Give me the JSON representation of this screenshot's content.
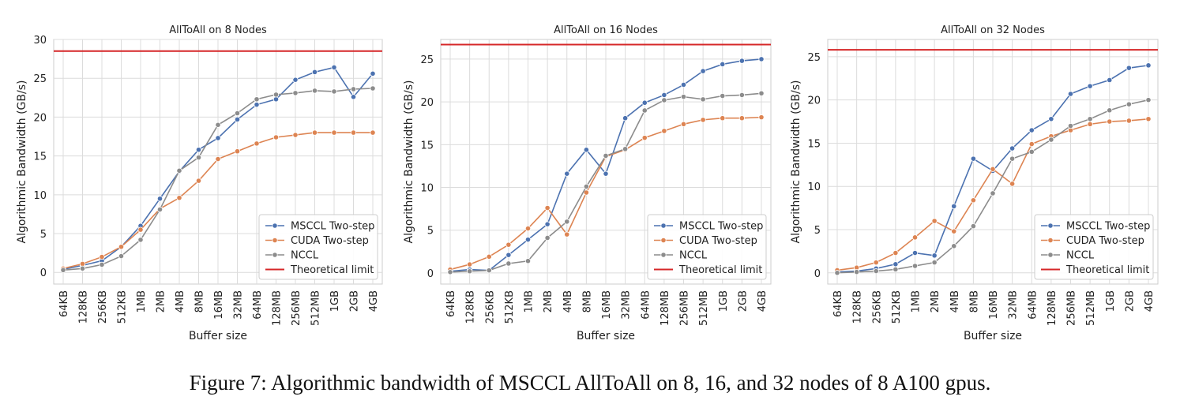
{
  "caption": "Figure 7: Algorithmic bandwidth of MSCCL AllToAll on 8, 16, and 32 nodes of 8 A100 gpus.",
  "colors": {
    "msccl": "#4c72b0",
    "cuda": "#dd8452",
    "nccl": "#8c8c8c",
    "limit": "#d62728",
    "grid": "#dcdcdc",
    "panel": "#eaeaf2"
  },
  "chart_data": [
    {
      "type": "line",
      "title": "AllToAll on 8 Nodes",
      "xlabel": "Buffer size",
      "ylabel": "Algorithmic Bandwidth (GB/s)",
      "categories": [
        "64KB",
        "128KB",
        "256KB",
        "512KB",
        "1MB",
        "2MB",
        "4MB",
        "8MB",
        "16MB",
        "32MB",
        "64MB",
        "128MB",
        "256MB",
        "512MB",
        "1GB",
        "2GB",
        "4GB"
      ],
      "ylim": [
        -1.5,
        30
      ],
      "yticks": [
        0,
        5,
        10,
        15,
        20,
        25,
        30
      ],
      "series": [
        {
          "name": "MSCCL Two-step",
          "values": [
            0.4,
            0.9,
            1.5,
            3.3,
            6.0,
            9.5,
            13.0,
            15.8,
            17.3,
            19.7,
            21.6,
            22.3,
            24.8,
            25.8,
            26.4,
            22.6,
            25.6
          ]
        },
        {
          "name": "CUDA Two-step",
          "values": [
            0.5,
            1.1,
            2.0,
            3.3,
            5.5,
            8.2,
            9.6,
            11.8,
            14.6,
            15.6,
            16.6,
            17.4,
            17.7,
            18.0,
            18.0,
            18.0,
            18.0
          ]
        },
        {
          "name": "NCCL",
          "values": [
            0.3,
            0.5,
            1.0,
            2.1,
            4.2,
            8.1,
            13.1,
            14.8,
            19.0,
            20.5,
            22.3,
            22.9,
            23.1,
            23.4,
            23.3,
            23.6,
            23.7
          ]
        }
      ],
      "limit": {
        "name": "Theoretical limit",
        "value": 28.5
      },
      "legend_position": "lower-right"
    },
    {
      "type": "line",
      "title": "AllToAll on 16 Nodes",
      "xlabel": "Buffer size",
      "ylabel": "Algorithmic Bandwidth (GB/s)",
      "categories": [
        "64KB",
        "128KB",
        "256KB",
        "512KB",
        "1MB",
        "2MB",
        "4MB",
        "8MB",
        "16MB",
        "32MB",
        "64MB",
        "128MB",
        "256MB",
        "512MB",
        "1GB",
        "2GB",
        "4GB"
      ],
      "ylim": [
        -1.3,
        27.3
      ],
      "yticks": [
        0,
        5,
        10,
        15,
        20,
        25
      ],
      "series": [
        {
          "name": "MSCCL Two-step",
          "values": [
            0.2,
            0.4,
            0.3,
            2.1,
            3.9,
            5.7,
            11.6,
            14.4,
            11.6,
            18.1,
            19.9,
            20.8,
            22.0,
            23.6,
            24.4,
            24.8,
            25.0
          ]
        },
        {
          "name": "CUDA Two-step",
          "values": [
            0.4,
            1.0,
            1.9,
            3.3,
            5.2,
            7.6,
            4.5,
            9.4,
            13.6,
            14.4,
            15.8,
            16.6,
            17.4,
            17.9,
            18.1,
            18.1,
            18.2
          ]
        },
        {
          "name": "NCCL",
          "values": [
            0.1,
            0.2,
            0.3,
            1.1,
            1.4,
            4.1,
            6.0,
            10.1,
            13.7,
            14.5,
            19.0,
            20.2,
            20.6,
            20.3,
            20.7,
            20.8,
            21.0
          ]
        }
      ],
      "limit": {
        "name": "Theoretical limit",
        "value": 26.7
      },
      "legend_position": "lower-right"
    },
    {
      "type": "line",
      "title": "AllToAll on 32 Nodes",
      "xlabel": "Buffer size",
      "ylabel": "Algorithmic Bandwidth (GB/s)",
      "categories": [
        "64KB",
        "128KB",
        "256KB",
        "512KB",
        "1MB",
        "2MB",
        "4MB",
        "8MB",
        "16MB",
        "32MB",
        "64MB",
        "128MB",
        "256MB",
        "512MB",
        "1GB",
        "2GB",
        "4GB"
      ],
      "ylim": [
        -1.3,
        27.0
      ],
      "yticks": [
        0,
        5,
        10,
        15,
        20,
        25
      ],
      "series": [
        {
          "name": "MSCCL Two-step",
          "values": [
            0.1,
            0.2,
            0.5,
            1.0,
            2.3,
            2.0,
            7.7,
            13.2,
            11.8,
            14.4,
            16.5,
            17.8,
            20.7,
            21.6,
            22.3,
            23.7,
            24.0
          ]
        },
        {
          "name": "CUDA Two-step",
          "values": [
            0.3,
            0.6,
            1.2,
            2.3,
            4.1,
            6.0,
            4.8,
            8.4,
            12.0,
            10.3,
            14.9,
            15.8,
            16.5,
            17.2,
            17.5,
            17.6,
            17.8
          ]
        },
        {
          "name": "NCCL",
          "values": [
            0.0,
            0.1,
            0.2,
            0.4,
            0.8,
            1.2,
            3.1,
            5.4,
            9.2,
            13.2,
            14.0,
            15.4,
            17.0,
            17.8,
            18.8,
            19.5,
            20.0
          ]
        }
      ],
      "limit": {
        "name": "Theoretical limit",
        "value": 25.8
      },
      "legend_position": "lower-right"
    }
  ]
}
